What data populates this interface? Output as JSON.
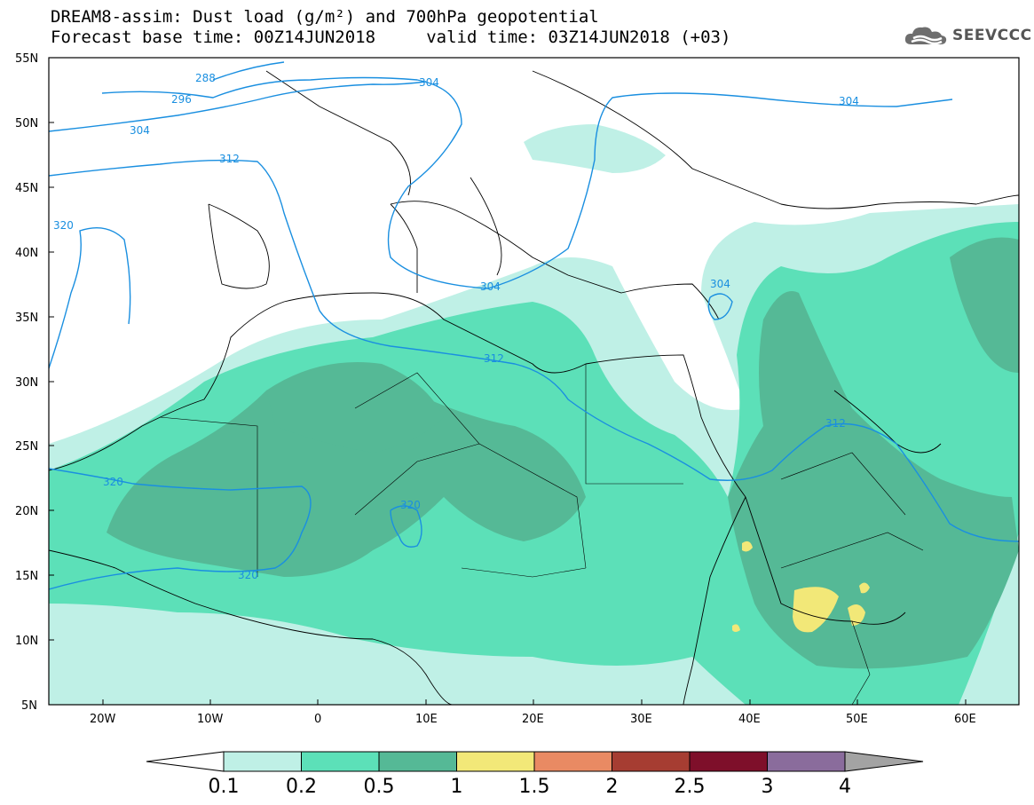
{
  "header": {
    "title_line1": "DREAM8-assim: Dust load (g/m²) and 700hPa geopotential",
    "title_line2": "Forecast base time: 00Z14JUN2018     valid time: 03Z14JUN2018 (+03)",
    "logo_text": "SEEVCCC"
  },
  "map": {
    "lat_labels": [
      "55N",
      "50N",
      "45N",
      "40N",
      "35N",
      "30N",
      "25N",
      "20N",
      "15N",
      "10N",
      "5N"
    ],
    "lon_labels": [
      "20W",
      "10W",
      "0",
      "10E",
      "20E",
      "30E",
      "40E",
      "50E",
      "60E"
    ],
    "contour_labels": [
      "288",
      "296",
      "304",
      "304",
      "304",
      "312",
      "320",
      "320",
      "320",
      "312",
      "304",
      "312",
      "304",
      "320"
    ],
    "contour_color": "#1a8fe0",
    "dust_colors": {
      "c1": "#bff0e6",
      "c2": "#5ce0b8",
      "c3": "#55b996",
      "c4": "#f2e878"
    }
  },
  "colorbar": {
    "labels": [
      "0.1",
      "0.2",
      "0.5",
      "1",
      "1.5",
      "2",
      "2.5",
      "3",
      "4"
    ],
    "colors": [
      "#ffffff",
      "#bff0e6",
      "#5ce0b8",
      "#55b996",
      "#f2e878",
      "#e98a63",
      "#a63d32",
      "#7e0f2a",
      "#8a6c9c",
      "#a3a3a3"
    ]
  }
}
